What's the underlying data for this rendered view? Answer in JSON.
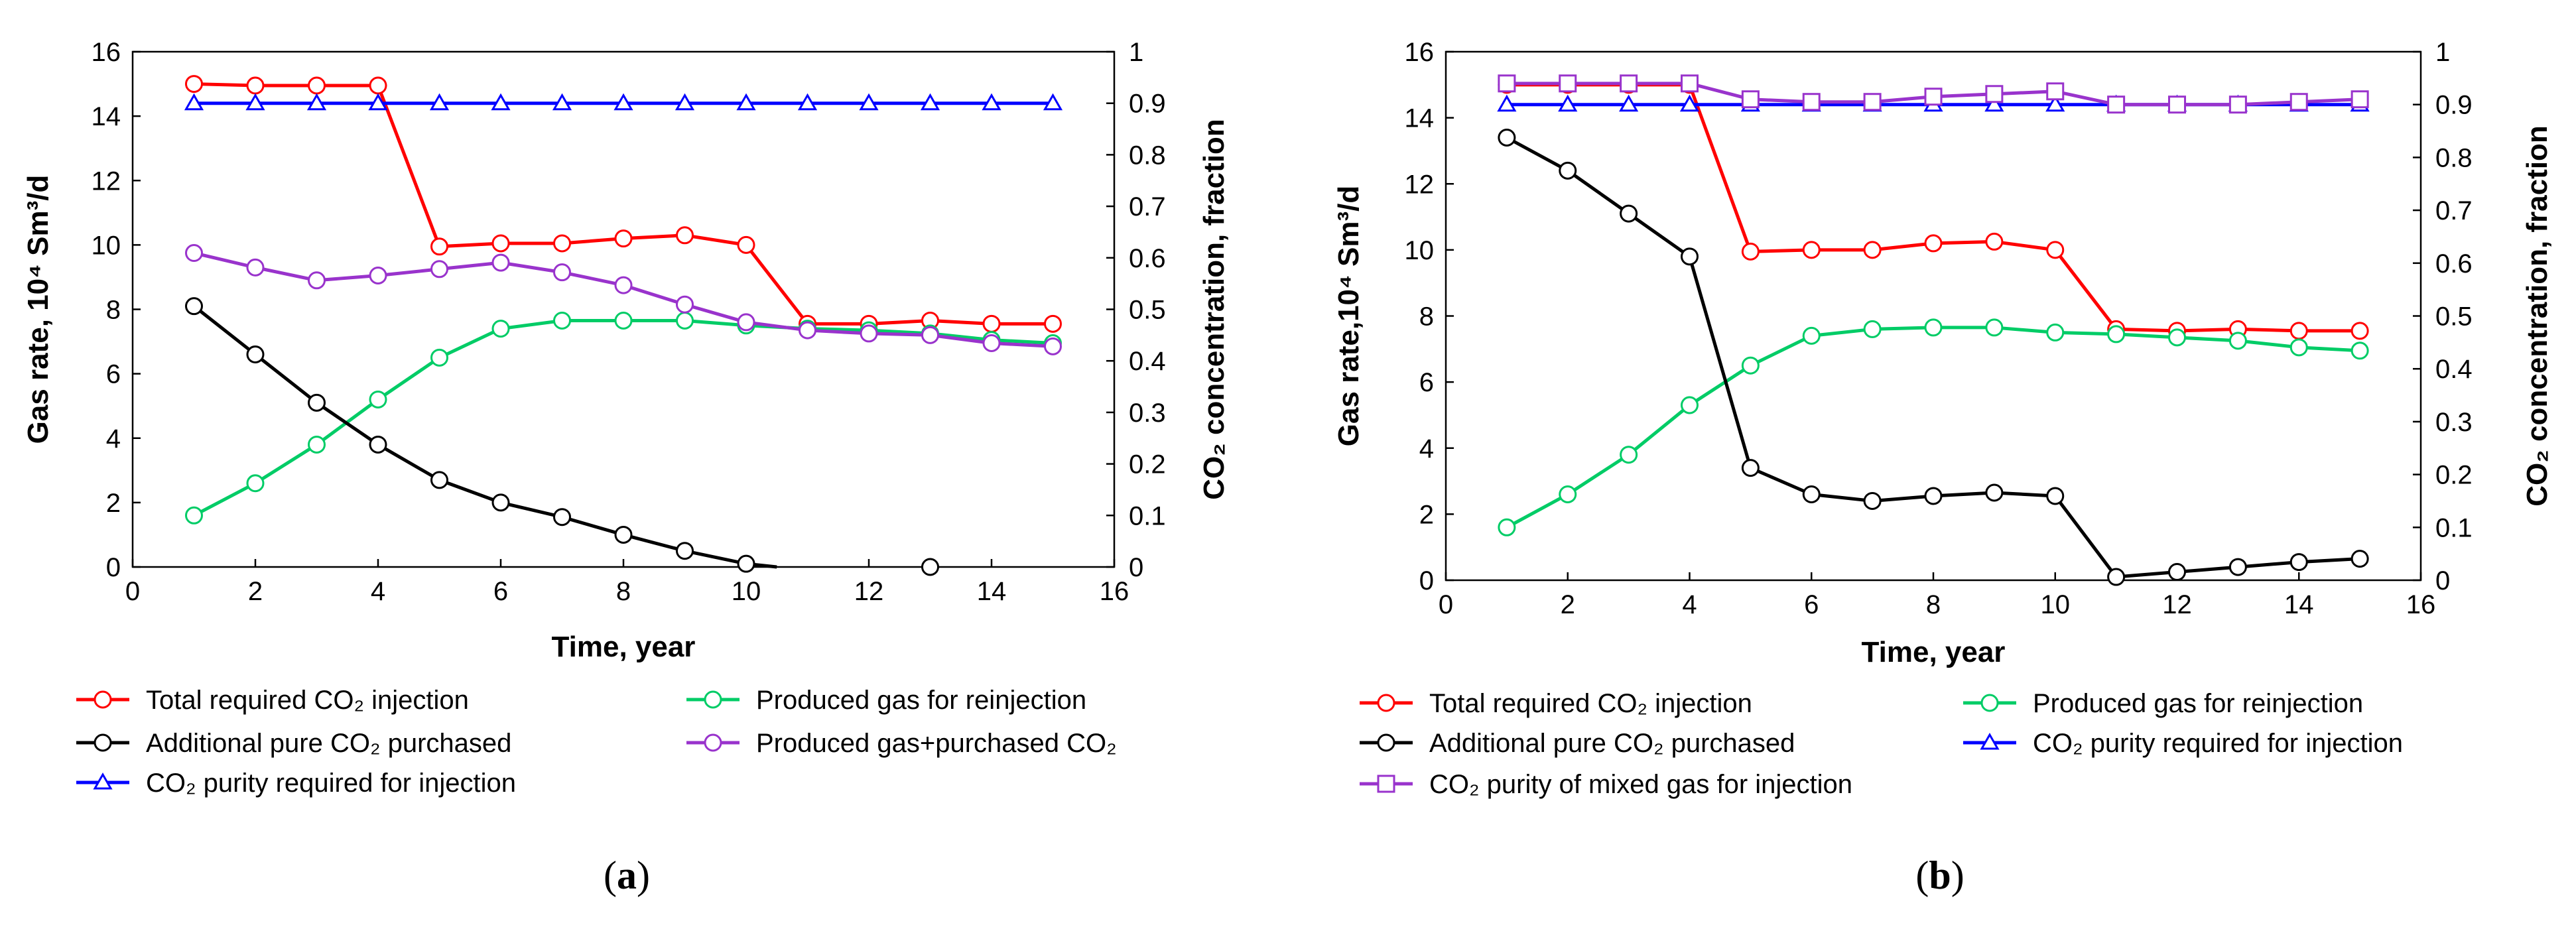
{
  "chart_data": [
    {
      "type": "line",
      "panel_label": "a",
      "xlabel": "Time, year",
      "ylabel_left": "Gas rate, 10⁴ Sm³/d",
      "ylabel_right": "CO₂ concentration, fraction",
      "xlim": [
        0,
        16
      ],
      "ylim_left": [
        0,
        16
      ],
      "ylim_right": [
        0,
        1
      ],
      "x_ticks": [
        0,
        2,
        4,
        6,
        8,
        10,
        12,
        14,
        16
      ],
      "y_left_ticks": [
        0,
        2,
        4,
        6,
        8,
        10,
        12,
        14,
        16
      ],
      "y_right_ticks": [
        "0",
        "0.1",
        "0.2",
        "0.3",
        "0.4",
        "0.5",
        "0.6",
        "0.7",
        "0.8",
        "0.9",
        "1"
      ],
      "legend_columns": 2,
      "series": [
        {
          "name": "Total required CO₂ injection",
          "color": "#ff0000",
          "marker": "circle",
          "axis": "left",
          "x": [
            1,
            2,
            3,
            4,
            5,
            6,
            7,
            8,
            9,
            10,
            11,
            12,
            13,
            14,
            15
          ],
          "values": [
            15.0,
            14.95,
            14.95,
            14.95,
            9.95,
            10.05,
            10.05,
            10.2,
            10.3,
            10.0,
            7.55,
            7.55,
            7.65,
            7.55,
            7.55
          ]
        },
        {
          "name": "Produced gas for reinjection",
          "color": "#00cc66",
          "marker": "circle",
          "axis": "left",
          "x": [
            1,
            2,
            3,
            4,
            5,
            6,
            7,
            8,
            9,
            10,
            11,
            12,
            13,
            14,
            15
          ],
          "values": [
            1.6,
            2.6,
            3.8,
            5.2,
            6.5,
            7.4,
            7.65,
            7.65,
            7.65,
            7.5,
            7.4,
            7.35,
            7.25,
            7.05,
            6.95
          ]
        },
        {
          "name": "Additional pure CO₂ purchased",
          "color": "#000000",
          "marker": "circle",
          "axis": "left",
          "line_segments": [
            [
              1,
              2,
              3,
              4,
              5,
              6,
              7,
              8,
              9,
              10,
              10.5
            ]
          ],
          "x": [
            1,
            2,
            3,
            4,
            5,
            6,
            7,
            8,
            9,
            10,
            13
          ],
          "values": [
            8.1,
            6.6,
            5.1,
            3.8,
            2.7,
            2.0,
            1.55,
            1.0,
            0.5,
            0.1,
            0.0
          ],
          "line_end": [
            10.5,
            0.0
          ]
        },
        {
          "name": "Produced gas+purchased CO₂",
          "color": "#9933cc",
          "marker": "circle",
          "axis": "left",
          "x": [
            1,
            2,
            3,
            4,
            5,
            6,
            7,
            8,
            9,
            10,
            11,
            12,
            13,
            14,
            15
          ],
          "values": [
            9.75,
            9.3,
            8.9,
            9.05,
            9.25,
            9.45,
            9.15,
            8.75,
            8.15,
            7.6,
            7.35,
            7.25,
            7.2,
            6.95,
            6.85
          ]
        },
        {
          "name": "CO₂ purity required for injection",
          "color": "#0000ff",
          "marker": "triangle",
          "axis": "right",
          "x": [
            1,
            2,
            3,
            4,
            5,
            6,
            7,
            8,
            9,
            10,
            11,
            12,
            13,
            14,
            15
          ],
          "values": [
            0.9,
            0.9,
            0.9,
            0.9,
            0.9,
            0.9,
            0.9,
            0.9,
            0.9,
            0.9,
            0.9,
            0.9,
            0.9,
            0.9,
            0.9
          ]
        }
      ]
    },
    {
      "type": "line",
      "panel_label": "b",
      "xlabel": "Time, year",
      "ylabel_left": "Gas rate,10⁴ Sm³/d",
      "ylabel_right": "CO₂ concentration, fraction",
      "xlim": [
        0,
        16
      ],
      "ylim_left": [
        0,
        16
      ],
      "ylim_right": [
        0,
        1
      ],
      "x_ticks": [
        0,
        2,
        4,
        6,
        8,
        10,
        12,
        14,
        16
      ],
      "y_left_ticks": [
        0,
        2,
        4,
        6,
        8,
        10,
        12,
        14,
        16
      ],
      "y_right_ticks": [
        "0",
        "0.1",
        "0.2",
        "0.3",
        "0.4",
        "0.5",
        "0.6",
        "0.7",
        "0.8",
        "0.9",
        "1"
      ],
      "legend_columns": 2,
      "series": [
        {
          "name": "Total required CO₂ injection",
          "color": "#ff0000",
          "marker": "circle",
          "axis": "left",
          "x": [
            1,
            2,
            3,
            4,
            5,
            6,
            7,
            8,
            9,
            10,
            11,
            12,
            13,
            14,
            15
          ],
          "values": [
            15.0,
            15.0,
            15.0,
            15.0,
            9.95,
            10.0,
            10.0,
            10.2,
            10.25,
            10.0,
            7.6,
            7.55,
            7.6,
            7.55,
            7.55
          ]
        },
        {
          "name": "Produced gas for reinjection",
          "color": "#00cc66",
          "marker": "circle",
          "axis": "left",
          "x": [
            1,
            2,
            3,
            4,
            5,
            6,
            7,
            8,
            9,
            10,
            11,
            12,
            13,
            14,
            15
          ],
          "values": [
            1.6,
            2.6,
            3.8,
            5.3,
            6.5,
            7.4,
            7.6,
            7.65,
            7.65,
            7.5,
            7.45,
            7.35,
            7.25,
            7.05,
            6.95
          ]
        },
        {
          "name": "Additional pure CO₂ purchased",
          "color": "#000000",
          "marker": "circle",
          "axis": "left",
          "x": [
            1,
            2,
            3,
            4,
            5,
            6,
            7,
            8,
            9,
            10,
            11,
            12,
            13,
            14,
            15
          ],
          "values": [
            13.4,
            12.4,
            11.1,
            9.8,
            3.4,
            2.6,
            2.4,
            2.55,
            2.65,
            2.55,
            0.1,
            0.25,
            0.4,
            0.55,
            0.65
          ]
        },
        {
          "name": "CO₂ purity required for injection",
          "color": "#0000ff",
          "marker": "triangle",
          "axis": "right",
          "x": [
            1,
            2,
            3,
            4,
            5,
            6,
            7,
            8,
            9,
            10,
            11,
            12,
            13,
            14,
            15
          ],
          "values": [
            0.9,
            0.9,
            0.9,
            0.9,
            0.9,
            0.9,
            0.9,
            0.9,
            0.9,
            0.9,
            0.9,
            0.9,
            0.9,
            0.9,
            0.9
          ]
        },
        {
          "name": "CO₂ purity of mixed gas for injection",
          "color": "#9933cc",
          "marker": "square",
          "axis": "right",
          "x": [
            1,
            2,
            3,
            4,
            5,
            6,
            7,
            8,
            9,
            10,
            11,
            12,
            13,
            14,
            15
          ],
          "values": [
            0.94,
            0.94,
            0.94,
            0.94,
            0.91,
            0.905,
            0.905,
            0.915,
            0.92,
            0.925,
            0.9,
            0.9,
            0.9,
            0.905,
            0.91
          ]
        }
      ]
    }
  ]
}
